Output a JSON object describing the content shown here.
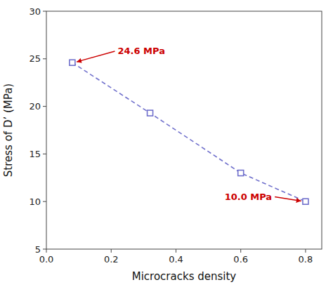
{
  "chart_data": {
    "type": "line",
    "x": [
      0.08,
      0.32,
      0.6,
      0.8
    ],
    "values": [
      24.6,
      19.3,
      13.0,
      10.0
    ],
    "color": "#7070cc",
    "marker": "square",
    "line_style": "dashed",
    "xlabel": "Microcracks density",
    "ylabel": "Stress of D’ (MPa)",
    "xlim": [
      0.0,
      0.85
    ],
    "ylim": [
      5,
      30
    ],
    "xticks": [
      {
        "value": 0.0,
        "label": "0.0"
      },
      0.2,
      0.4,
      0.6,
      0.8
    ],
    "yticks": [
      5,
      10,
      15,
      20,
      25,
      30
    ],
    "grid": false,
    "annotations": [
      {
        "text": "24.6 MPa",
        "x": 0.22,
        "y": 25.8,
        "arrow_x": 0.085,
        "arrow_y": 24.6,
        "color": "#cc0000"
      },
      {
        "text": "10.0 MPa",
        "x": 0.55,
        "y": 10.5,
        "arrow_x": 0.795,
        "arrow_y": 10.0,
        "color": "#cc0000"
      }
    ]
  }
}
